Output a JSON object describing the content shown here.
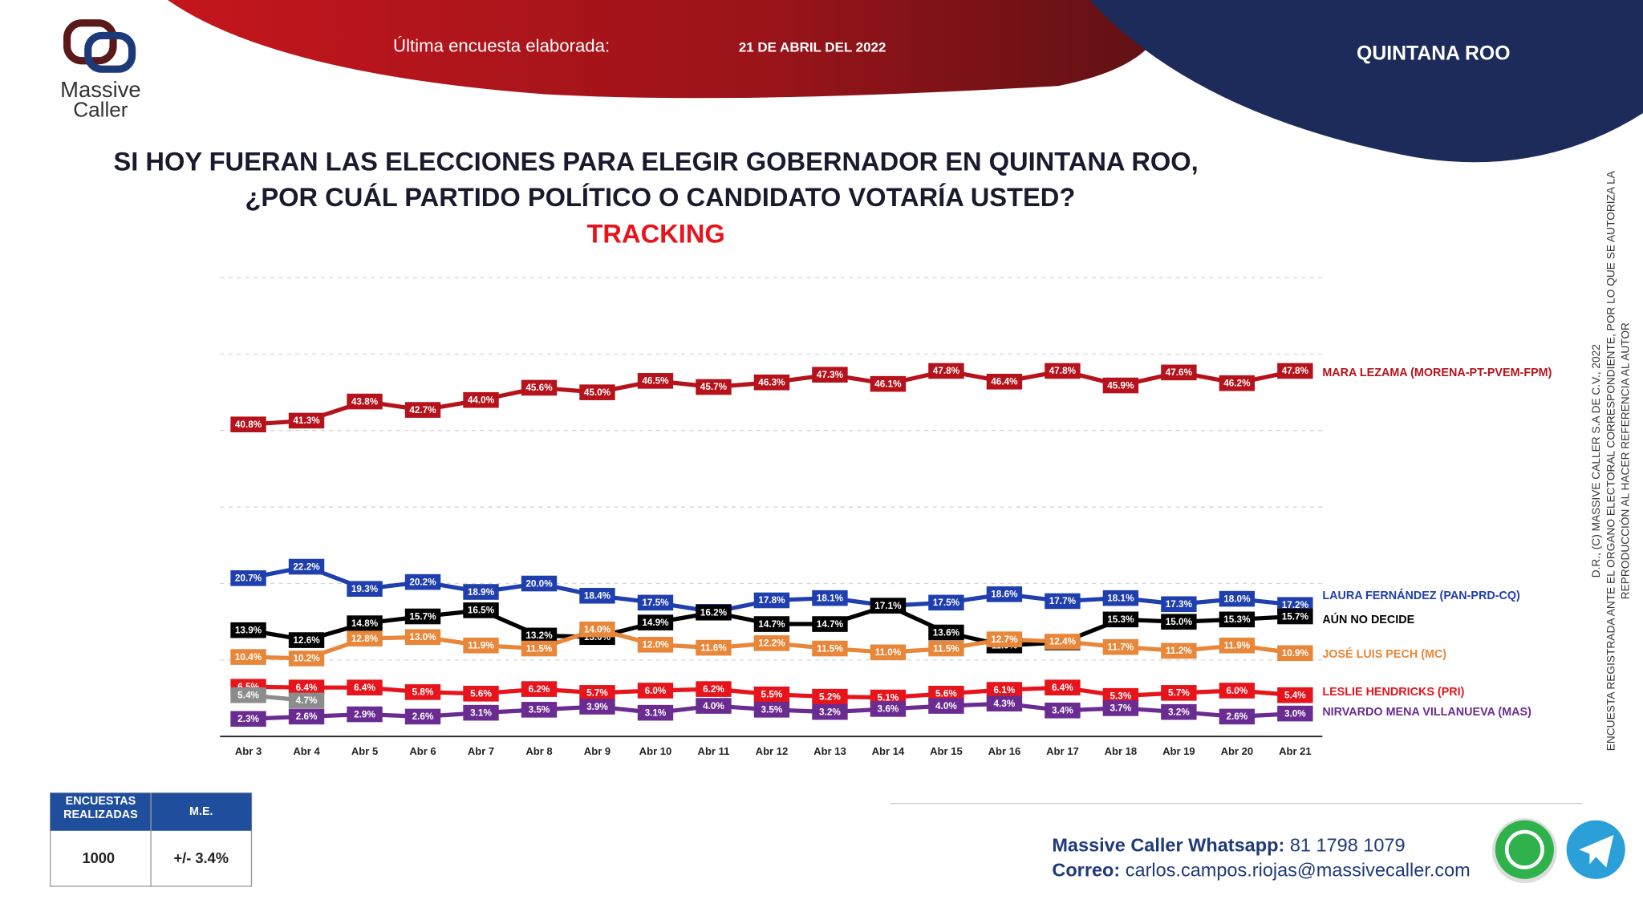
{
  "header": {
    "survey_label": "Última encuesta elaborada:",
    "survey_date": "21 DE ABRIL DEL 2022",
    "region": "QUINTANA ROO"
  },
  "logo": {
    "line1": "Massive",
    "line2": "Caller"
  },
  "chart_data": {
    "type": "line",
    "title": [
      "SI HOY FUERAN LAS ELECCIONES PARA ELEGIR GOBERNADOR EN QUINTANA ROO,",
      "¿POR CUÁL PARTIDO POLÍTICO O CANDIDATO VOTARÍA USTED?"
    ],
    "subtitle": "TRACKING",
    "categories": [
      "Abr 3",
      "Abr 4",
      "Abr 5",
      "Abr 6",
      "Abr 7",
      "Abr 8",
      "Abr 9",
      "Abr 10",
      "Abr 11",
      "Abr 12",
      "Abr 13",
      "Abr 14",
      "Abr 15",
      "Abr 16",
      "Abr 17",
      "Abr 18",
      "Abr 19",
      "Abr 20",
      "Abr 21"
    ],
    "ylim": [
      0,
      60
    ],
    "yticks": [
      0,
      10,
      20,
      30,
      40,
      50,
      60
    ],
    "grid": true,
    "series": [
      {
        "name": "MARA LEZAMA (MORENA-PT-PVEM-FPM)",
        "color": "#b5121b",
        "values": [
          40.8,
          41.3,
          43.8,
          42.7,
          44.0,
          45.6,
          45.0,
          46.5,
          45.7,
          46.3,
          47.3,
          46.1,
          47.8,
          46.4,
          47.8,
          45.9,
          47.6,
          46.2,
          47.8
        ],
        "value_labels": [
          "40.8%",
          "41.3%",
          "43.8%",
          "42.7%",
          "44.0%",
          "45.6%",
          "45.0%",
          "46.5%",
          "45.7%",
          "46.3%",
          "47.3%",
          "46.1%",
          "47.8%",
          "46.4%",
          "47.8%",
          "45.9%",
          "47.6%",
          "46.2%",
          "47.8%"
        ]
      },
      {
        "name": "LAURA FERNÁNDEZ (PAN-PRD-CQ)",
        "color": "#1f3fae",
        "values": [
          20.7,
          22.2,
          19.3,
          20.2,
          18.9,
          20.0,
          18.4,
          17.5,
          16.3,
          17.8,
          18.1,
          17.1,
          17.5,
          18.6,
          17.7,
          18.1,
          17.3,
          18.0,
          17.2
        ],
        "value_labels": [
          "20.7%",
          "22.2%",
          "19.3%",
          "20.2%",
          "18.9%",
          "20.0%",
          "18.4%",
          "17.5%",
          "16.3%",
          "17.8%",
          "18.1%",
          "17.1%",
          "17.5%",
          "18.6%",
          "17.7%",
          "18.1%",
          "17.3%",
          "18.0%",
          "17.2%"
        ]
      },
      {
        "name": "AÚN NO DECIDE",
        "color": "#000000",
        "values": [
          13.9,
          12.6,
          14.8,
          15.7,
          16.5,
          13.2,
          13.0,
          14.9,
          16.2,
          14.7,
          14.7,
          17.1,
          13.6,
          11.9,
          12.3,
          15.3,
          15.0,
          15.3,
          15.7
        ],
        "value_labels": [
          "13.9%",
          "12.6%",
          "14.8%",
          "15.7%",
          "16.5%",
          "13.2%",
          "13.0%",
          "14.9%",
          "16.2%",
          "14.7%",
          "14.7%",
          "17.1%",
          "13.6%",
          "11.9%",
          "12.3%",
          "15.3%",
          "15.0%",
          "15.3%",
          "15.7%"
        ]
      },
      {
        "name": "JOSÉ LUIS PECH (MC)",
        "color": "#e8873a",
        "values": [
          10.4,
          10.2,
          12.8,
          13.0,
          11.9,
          11.5,
          14.0,
          12.0,
          11.6,
          12.2,
          11.5,
          11.0,
          11.5,
          12.7,
          12.4,
          11.7,
          11.2,
          11.9,
          10.9
        ],
        "value_labels": [
          "10.4%",
          "10.2%",
          "12.8%",
          "13.0%",
          "11.9%",
          "11.5%",
          "14.0%",
          "12.0%",
          "11.6%",
          "12.2%",
          "11.5%",
          "11.0%",
          "11.5%",
          "12.7%",
          "12.4%",
          "11.7%",
          "11.2%",
          "11.9%",
          "10.9%"
        ]
      },
      {
        "name": "LESLIE HENDRICKS (PRI)",
        "color": "#e8141c",
        "values": [
          6.5,
          6.4,
          6.4,
          5.8,
          5.6,
          6.2,
          5.7,
          6.0,
          6.2,
          5.5,
          5.2,
          5.1,
          5.6,
          6.1,
          6.4,
          5.3,
          5.7,
          6.0,
          5.4
        ],
        "value_labels": [
          "6.5%",
          "6.4%",
          "6.4%",
          "5.8%",
          "5.6%",
          "6.2%",
          "5.7%",
          "6.0%",
          "6.2%",
          "5.5%",
          "5.2%",
          "5.1%",
          "5.6%",
          "6.1%",
          "6.4%",
          "5.3%",
          "5.7%",
          "6.0%",
          "5.4%"
        ]
      },
      {
        "name": "NIRVARDO MENA VILLANUEVA (MAS)",
        "color": "#6a2c91",
        "values": [
          2.3,
          2.6,
          2.9,
          2.6,
          3.1,
          3.5,
          3.9,
          3.1,
          4.0,
          3.5,
          3.2,
          3.6,
          4.0,
          4.3,
          3.4,
          3.7,
          3.2,
          2.6,
          3.0
        ],
        "value_labels": [
          "2.3%",
          "2.6%",
          "2.9%",
          "2.6%",
          "3.1%",
          "3.5%",
          "3.9%",
          "3.1%",
          "4.0%",
          "3.5%",
          "3.2%",
          "3.6%",
          "4.0%",
          "4.3%",
          "3.4%",
          "3.7%",
          "3.2%",
          "2.6%",
          "3.0%"
        ]
      },
      {
        "color": "#8c8c8c",
        "values": [
          5.4,
          4.7,
          null,
          null,
          null,
          null,
          null,
          null,
          null,
          null,
          null,
          null,
          null,
          null,
          null,
          null,
          null,
          null,
          null
        ],
        "value_labels": [
          "5.4%",
          "4.7%",
          null,
          null,
          null,
          null,
          null,
          null,
          null,
          null,
          null,
          null,
          null,
          null,
          null,
          null,
          null,
          null,
          null
        ]
      }
    ]
  },
  "side_note": [
    "D.R., (C) MASSIVE CALLER S.A DE C.V., 2022",
    "ENCUESTA REGISTRADA ANTE EL ORGANO ELECTORAL CORRESPONDIENTE, POR LO QUE SE AUTORIZA LA",
    "REPRODUCCIÓN AL HACER REFERENCIA AL AUTOR"
  ],
  "table": {
    "headers": [
      "ENCUESTAS REALIZADAS",
      "M.E."
    ],
    "rows": [
      [
        "1000",
        "+/- 3.4%"
      ]
    ]
  },
  "footer": {
    "whatsapp_label": "Massive Caller Whatsapp:",
    "whatsapp": "81 1798 1079",
    "email_label": "Correo:",
    "email": "carlos.campos.riojas@massivecaller.com"
  }
}
